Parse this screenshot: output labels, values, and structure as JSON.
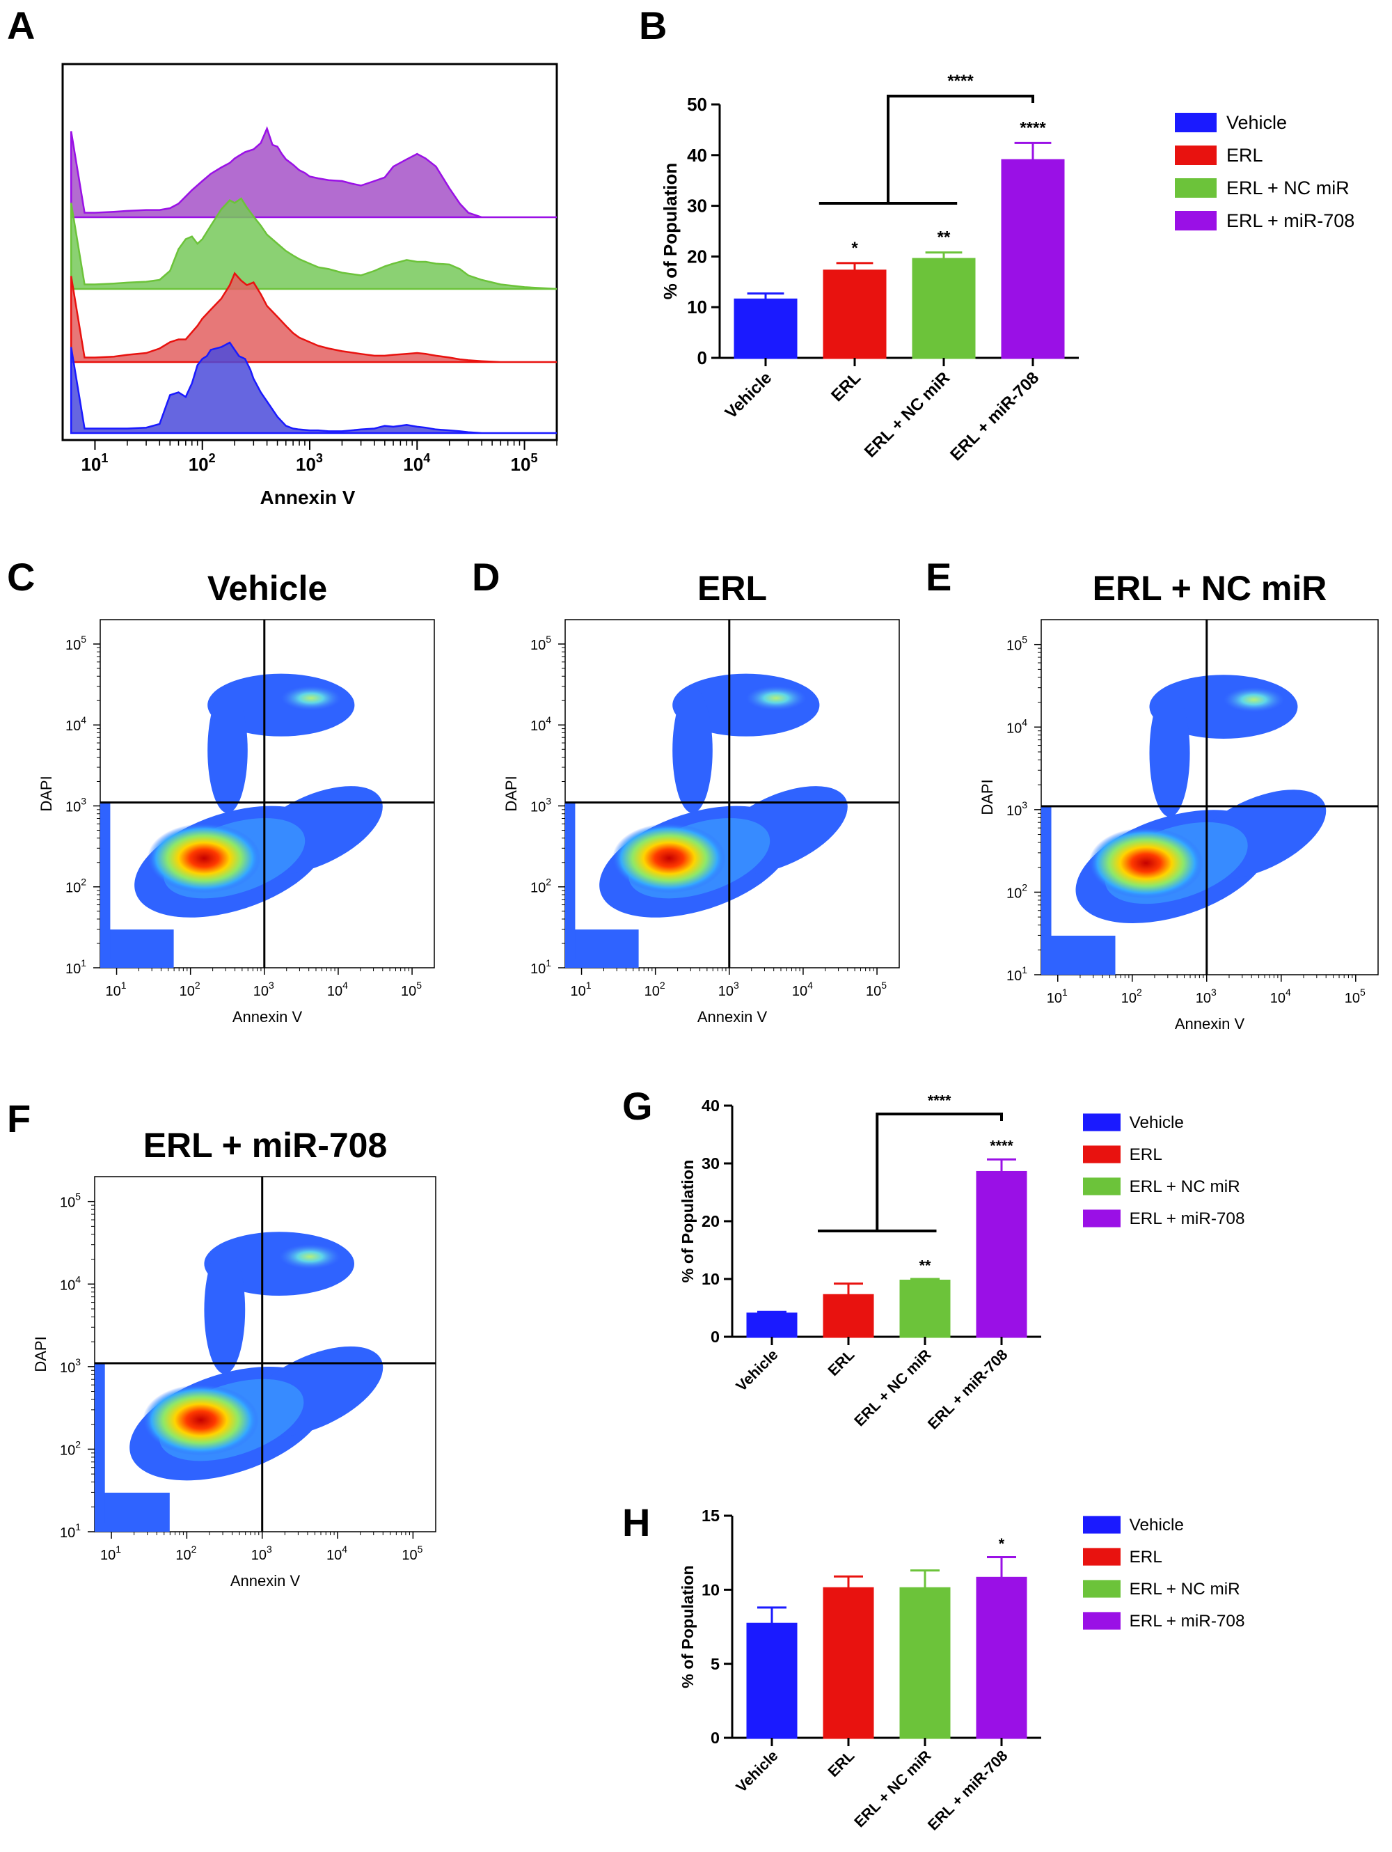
{
  "colors": {
    "vehicle": "#1a1aff",
    "erl": "#e8120f",
    "nc": "#6cc33a",
    "mir708": "#9a10e6",
    "vehicle_fill": "#4b4bdb",
    "erl_fill": "#e36060",
    "nc_fill": "#77c95a",
    "mir708_fill": "#a652c8"
  },
  "chart_data": [
    {
      "panel": "A",
      "type": "area",
      "title": "",
      "xlabel": "Annexin V",
      "ylabel": "",
      "x_scale": "log",
      "xlim": [
        5,
        200000
      ],
      "x_tick_values": [
        10,
        100,
        1000,
        10000,
        100000
      ],
      "x_tick_labels": [
        {
          "base": "10",
          "exp": "1"
        },
        {
          "base": "10",
          "exp": "2"
        },
        {
          "base": "10",
          "exp": "3"
        },
        {
          "base": "10",
          "exp": "4"
        },
        {
          "base": "10",
          "exp": "5"
        }
      ],
      "series": [
        {
          "name": "ERL + miR-708",
          "color_key": "mir708",
          "x": [
            6,
            8,
            10,
            15,
            20,
            30,
            40,
            50,
            60,
            70,
            80,
            100,
            120,
            150,
            180,
            200,
            220,
            250,
            300,
            350,
            400,
            450,
            500,
            550,
            600,
            700,
            800,
            900,
            1000,
            1200,
            1500,
            2000,
            2500,
            3000,
            4000,
            5000,
            6000,
            8000,
            10000,
            12000,
            15000,
            20000,
            25000,
            30000,
            40000
          ],
          "y": [
            0.95,
            0.05,
            0.05,
            0.06,
            0.07,
            0.08,
            0.08,
            0.1,
            0.15,
            0.23,
            0.3,
            0.4,
            0.48,
            0.55,
            0.6,
            0.65,
            0.68,
            0.72,
            0.75,
            0.82,
            0.98,
            0.8,
            0.78,
            0.7,
            0.64,
            0.58,
            0.52,
            0.49,
            0.45,
            0.43,
            0.41,
            0.4,
            0.37,
            0.35,
            0.4,
            0.44,
            0.56,
            0.64,
            0.7,
            0.65,
            0.56,
            0.32,
            0.15,
            0.05,
            0.0
          ]
        },
        {
          "name": "ERL + NC miR",
          "color_key": "nc",
          "x": [
            6,
            8,
            10,
            15,
            20,
            30,
            40,
            50,
            60,
            70,
            80,
            90,
            100,
            120,
            150,
            180,
            200,
            230,
            260,
            300,
            350,
            400,
            500,
            600,
            700,
            800,
            1000,
            1200,
            1500,
            2000,
            3000,
            4000,
            5000,
            6000,
            8000,
            10000,
            12000,
            15000,
            20000,
            25000,
            30000,
            40000,
            60000,
            100000,
            200000
          ],
          "y": [
            0.95,
            0.05,
            0.05,
            0.06,
            0.07,
            0.08,
            0.1,
            0.2,
            0.44,
            0.55,
            0.58,
            0.5,
            0.55,
            0.7,
            0.88,
            0.98,
            0.95,
            1.0,
            0.9,
            0.8,
            0.7,
            0.6,
            0.5,
            0.42,
            0.37,
            0.33,
            0.28,
            0.24,
            0.22,
            0.18,
            0.15,
            0.2,
            0.25,
            0.28,
            0.32,
            0.3,
            0.3,
            0.28,
            0.27,
            0.22,
            0.15,
            0.1,
            0.05,
            0.02,
            0.0
          ]
        },
        {
          "name": "ERL",
          "color_key": "erl",
          "x": [
            6,
            8,
            10,
            15,
            20,
            30,
            40,
            50,
            60,
            70,
            80,
            90,
            100,
            120,
            150,
            180,
            200,
            230,
            260,
            300,
            350,
            400,
            500,
            600,
            700,
            800,
            1000,
            1200,
            1500,
            2000,
            3000,
            4000,
            5000,
            6000,
            8000,
            10000,
            12000,
            15000,
            20000,
            25000,
            30000,
            40000,
            60000,
            100000,
            200000
          ],
          "y": [
            0.95,
            0.05,
            0.05,
            0.06,
            0.08,
            0.1,
            0.15,
            0.22,
            0.25,
            0.25,
            0.33,
            0.4,
            0.48,
            0.58,
            0.7,
            0.85,
            0.98,
            0.9,
            0.85,
            0.88,
            0.75,
            0.62,
            0.5,
            0.4,
            0.32,
            0.27,
            0.22,
            0.18,
            0.15,
            0.12,
            0.09,
            0.07,
            0.07,
            0.08,
            0.09,
            0.1,
            0.09,
            0.07,
            0.05,
            0.03,
            0.02,
            0.01,
            0.0,
            0.0,
            0.0
          ]
        },
        {
          "name": "Vehicle",
          "color_key": "vehicle",
          "x": [
            6,
            8,
            10,
            15,
            20,
            30,
            40,
            50,
            60,
            70,
            80,
            90,
            100,
            110,
            120,
            150,
            180,
            200,
            220,
            250,
            280,
            300,
            350,
            400,
            500,
            600,
            700,
            800,
            1000,
            1200,
            1500,
            2000,
            3000,
            4000,
            5000,
            6000,
            8000,
            10000,
            12000,
            15000,
            20000,
            25000,
            30000,
            40000,
            60000
          ],
          "y": [
            0.95,
            0.05,
            0.05,
            0.05,
            0.05,
            0.06,
            0.1,
            0.42,
            0.45,
            0.4,
            0.55,
            0.75,
            0.82,
            0.85,
            0.92,
            0.95,
            1.0,
            0.92,
            0.85,
            0.82,
            0.7,
            0.6,
            0.45,
            0.35,
            0.18,
            0.08,
            0.05,
            0.04,
            0.03,
            0.03,
            0.02,
            0.02,
            0.04,
            0.05,
            0.08,
            0.07,
            0.09,
            0.07,
            0.06,
            0.04,
            0.03,
            0.02,
            0.01,
            0.0,
            0.0
          ]
        }
      ]
    },
    {
      "panel": "B",
      "type": "bar",
      "title": "",
      "xlabel": "",
      "ylabel": "% of Population",
      "ylim": [
        0,
        50
      ],
      "yticks": [
        0,
        10,
        20,
        30,
        40,
        50
      ],
      "categories": [
        "Vehicle",
        "ERL",
        "ERL + NC miR",
        "ERL + miR-708"
      ],
      "values": [
        11.5,
        17.2,
        19.5,
        39.0
      ],
      "errors": [
        1.2,
        1.5,
        1.3,
        3.4
      ],
      "significance": [
        "",
        "*",
        "**",
        "****"
      ],
      "comparison_label": "****",
      "legend": [
        "Vehicle",
        "ERL",
        "ERL + NC miR",
        "ERL + miR-708"
      ],
      "legend_position": "right"
    },
    {
      "panel": "C",
      "type": "heatmap",
      "title": "Vehicle",
      "xlabel": "Annexin V",
      "ylabel": "DAPI",
      "x_scale": "log",
      "y_scale": "log",
      "xlim": [
        6,
        200000
      ],
      "ylim": [
        10,
        200000
      ],
      "quadrant_gate": {
        "x": 1000,
        "y": 1100
      },
      "x_tick_labels": [
        "10 1",
        "10 2",
        "10 3",
        "10 4",
        "10 5"
      ],
      "y_tick_labels": [
        "10 1",
        "10 2",
        "10 3",
        "10 4",
        "10 5"
      ]
    },
    {
      "panel": "D",
      "type": "heatmap",
      "title": "ERL",
      "xlabel": "Annexin V",
      "ylabel": "DAPI",
      "x_scale": "log",
      "y_scale": "log",
      "xlim": [
        6,
        200000
      ],
      "ylim": [
        10,
        200000
      ],
      "quadrant_gate": {
        "x": 1000,
        "y": 1100
      }
    },
    {
      "panel": "E",
      "type": "heatmap",
      "title": "ERL + NC miR",
      "xlabel": "Annexin V",
      "ylabel": "DAPI",
      "x_scale": "log",
      "y_scale": "log",
      "xlim": [
        6,
        200000
      ],
      "ylim": [
        10,
        200000
      ],
      "quadrant_gate": {
        "x": 1000,
        "y": 1100
      }
    },
    {
      "panel": "F",
      "type": "heatmap",
      "title": "ERL + miR-708",
      "xlabel": "Annexin V",
      "ylabel": "DAPI",
      "x_scale": "log",
      "y_scale": "log",
      "xlim": [
        6,
        200000
      ],
      "ylim": [
        10,
        200000
      ],
      "quadrant_gate": {
        "x": 1000,
        "y": 1100
      }
    },
    {
      "panel": "G",
      "type": "bar",
      "title": "",
      "xlabel": "",
      "ylabel": "% of Population",
      "ylim": [
        0,
        40
      ],
      "yticks": [
        0,
        10,
        20,
        30,
        40
      ],
      "categories": [
        "Vehicle",
        "ERL",
        "ERL + NC miR",
        "ERL + miR-708"
      ],
      "values": [
        4.0,
        7.2,
        9.7,
        28.5
      ],
      "errors": [
        0.3,
        2.0,
        0.3,
        2.2
      ],
      "significance": [
        "",
        "",
        "**",
        "****"
      ],
      "comparison_label": "****",
      "legend": [
        "Vehicle",
        "ERL",
        "ERL + NC miR",
        "ERL + miR-708"
      ],
      "legend_position": "right"
    },
    {
      "panel": "H",
      "type": "bar",
      "title": "",
      "xlabel": "",
      "ylabel": "% of Population",
      "ylim": [
        0,
        15
      ],
      "yticks": [
        0,
        5,
        10,
        15
      ],
      "categories": [
        "Vehicle",
        "ERL",
        "ERL + NC miR",
        "ERL + miR-708"
      ],
      "values": [
        7.7,
        10.1,
        10.1,
        10.8
      ],
      "errors": [
        1.1,
        0.8,
        1.2,
        1.4
      ],
      "significance": [
        "",
        "",
        "",
        "*"
      ],
      "legend": [
        "Vehicle",
        "ERL",
        "ERL + NC miR",
        "ERL + miR-708"
      ],
      "legend_position": "right"
    }
  ],
  "panel_labels": {
    "A": "A",
    "B": "B",
    "C": "C",
    "D": "D",
    "E": "E",
    "F": "F",
    "G": "G",
    "H": "H"
  }
}
